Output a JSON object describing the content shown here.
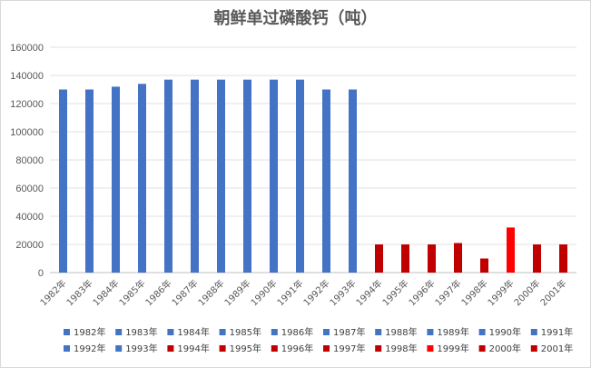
{
  "chart_data": {
    "type": "bar",
    "title": "朝鲜单过磷酸钙（吨）",
    "categories": [
      "1982年",
      "1983年",
      "1984年",
      "1985年",
      "1986年",
      "1987年",
      "1988年",
      "1989年",
      "1990年",
      "1991年",
      "1992年",
      "1993年",
      "1994年",
      "1995年",
      "1996年",
      "1997年",
      "1998年",
      "1999年",
      "2000年",
      "2001年"
    ],
    "values": [
      130000,
      130000,
      132000,
      134000,
      137000,
      137000,
      137000,
      137000,
      137000,
      137000,
      130000,
      130000,
      20000,
      20000,
      20000,
      21000,
      10000,
      32000,
      20000,
      20000
    ],
    "colors": [
      "#4472c4",
      "#4472c4",
      "#4472c4",
      "#4472c4",
      "#4472c4",
      "#4472c4",
      "#4472c4",
      "#4472c4",
      "#4472c4",
      "#4472c4",
      "#4472c4",
      "#4472c4",
      "#c00000",
      "#c00000",
      "#c00000",
      "#c00000",
      "#c00000",
      "#ff0000",
      "#c00000",
      "#c00000"
    ],
    "ylim": [
      0,
      160000
    ],
    "yticks": [
      0,
      20000,
      40000,
      60000,
      80000,
      100000,
      120000,
      140000,
      160000
    ],
    "ytick_labels": [
      "0",
      "20000",
      "40000",
      "60000",
      "80000",
      "100000",
      "120000",
      "140000",
      "160000"
    ],
    "xlabel": "",
    "ylabel": "",
    "grid": true,
    "legend_position": "bottom"
  }
}
